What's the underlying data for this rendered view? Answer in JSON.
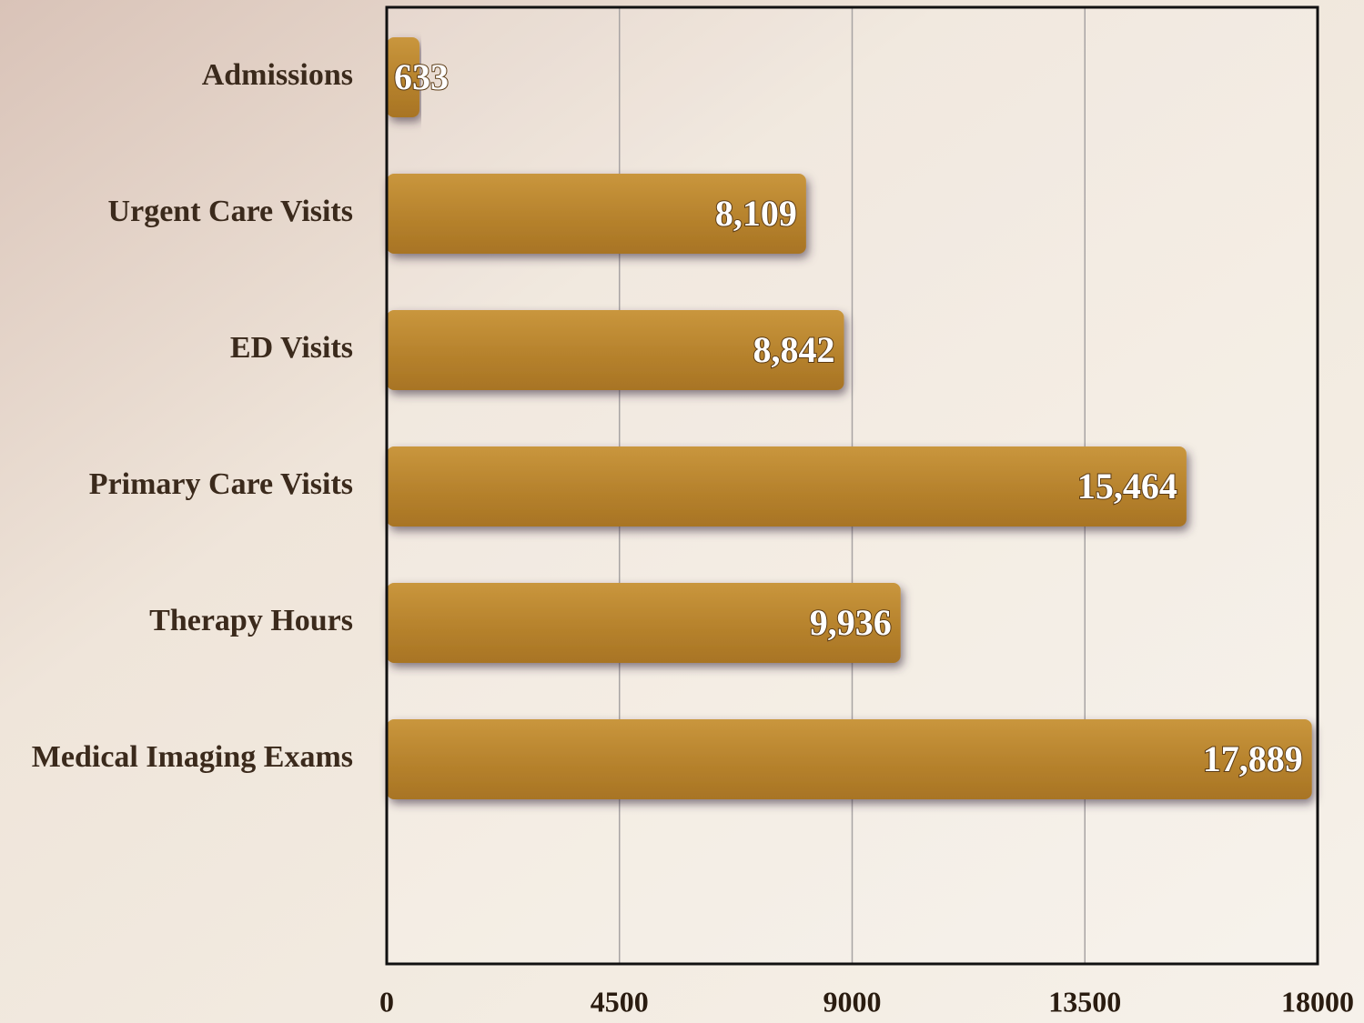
{
  "chart_data": {
    "type": "bar",
    "orientation": "horizontal",
    "categories": [
      "Admissions",
      "Urgent Care Visits",
      "ED Visits",
      "Primary Care Visits",
      "Therapy Hours",
      "Medical Imaging Exams"
    ],
    "values": [
      633,
      8109,
      8842,
      15464,
      9936,
      17889
    ],
    "value_labels": [
      "633",
      "8,109",
      "8,842",
      "15,464",
      "9,936",
      "17,889"
    ],
    "color": "#b8842e",
    "xlim": [
      0,
      18000
    ],
    "xticks": [
      0,
      4500,
      9000,
      13500,
      18000
    ],
    "grid": true
  }
}
